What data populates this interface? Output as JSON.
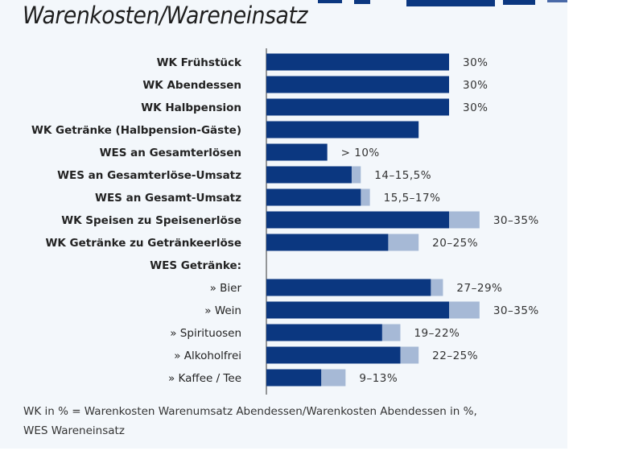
{
  "chart_data": {
    "type": "bar",
    "orientation": "horizontal",
    "stacked_range": true,
    "title": "Warenkosten/Wareneinsatz",
    "xlim": [
      0,
      35
    ],
    "grid": false,
    "colors": {
      "low": "#0b3780",
      "range": "#a6b9d6"
    },
    "rows": [
      {
        "label": "WK Frühstück",
        "bold": true,
        "low": 30,
        "high": 30,
        "value_label": "30%"
      },
      {
        "label": "WK Abendessen",
        "bold": true,
        "low": 30,
        "high": 30,
        "value_label": "30%"
      },
      {
        "label": "WK Halbpension",
        "bold": true,
        "low": 30,
        "high": 30,
        "value_label": "30%"
      },
      {
        "label": "WK Getränke (Halbpension-Gäste)",
        "bold": true,
        "low": 25,
        "high": 25,
        "value_label": ""
      },
      {
        "label": "WES an Gesamterlösen",
        "bold": true,
        "low": 10,
        "high": 10,
        "value_label": "> 10%"
      },
      {
        "label": "WES an Gesamterlöse-Umsatz",
        "bold": true,
        "low": 14,
        "high": 15.5,
        "value_label": "14–15,5%"
      },
      {
        "label": "WES an Gesamt-Umsatz",
        "bold": true,
        "low": 15.5,
        "high": 17,
        "value_label": "15,5–17%"
      },
      {
        "label": "WK Speisen zu Speisenerlöse",
        "bold": true,
        "low": 30,
        "high": 35,
        "value_label": "30–35%"
      },
      {
        "label": "WK Getränke zu Getränkeerlöse",
        "bold": true,
        "low": 20,
        "high": 25,
        "value_label": "20–25%"
      },
      {
        "label": "WES Getränke:",
        "bold": true,
        "low": null,
        "high": null,
        "value_label": ""
      },
      {
        "label": "» Bier",
        "bold": false,
        "low": 27,
        "high": 29,
        "value_label": "27–29%"
      },
      {
        "label": "» Wein",
        "bold": false,
        "low": 30,
        "high": 35,
        "value_label": "30–35%"
      },
      {
        "label": "» Spirituosen",
        "bold": false,
        "low": 19,
        "high": 22,
        "value_label": "19–22%"
      },
      {
        "label": "» Alkoholfrei",
        "bold": false,
        "low": 22,
        "high": 25,
        "value_label": "22–25%"
      },
      {
        "label": "» Kaffee / Tee",
        "bold": false,
        "low": 9,
        "high": 13,
        "value_label": "9–13%"
      }
    ],
    "note_lines": [
      "WK in % = Warenkosten Warenumsatz Abendessen/Warenkosten Abendessen in %,",
      "WES Wareneinsatz"
    ]
  }
}
